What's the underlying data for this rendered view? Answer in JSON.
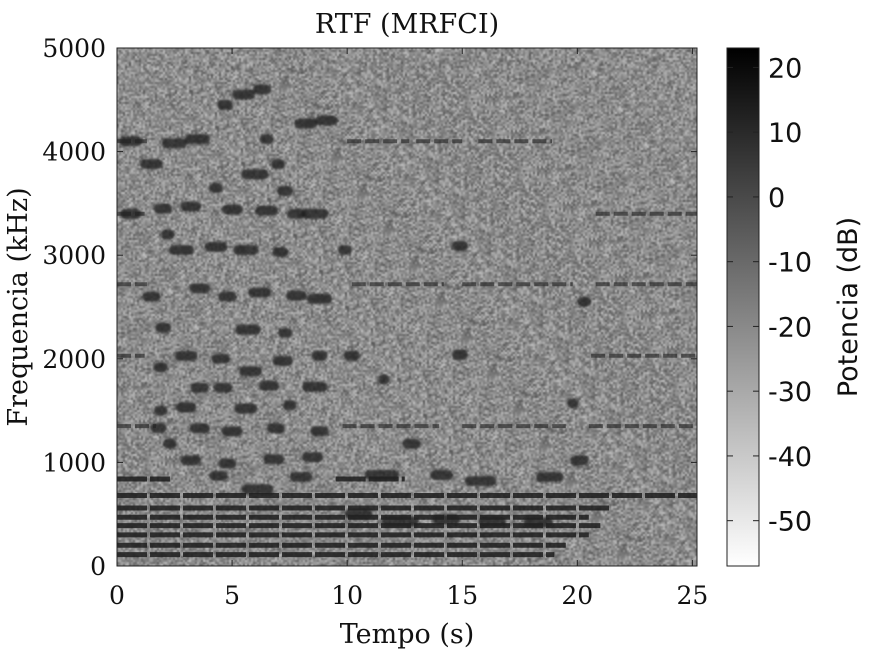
{
  "chart_data": {
    "type": "heatmap",
    "title": "RTF (MRFCI)",
    "xlabel": "Tempo (s)",
    "ylabel": "Frequencia (kHz)",
    "xlim": [
      0,
      25.2
    ],
    "ylim": [
      0,
      5000
    ],
    "x_ticks": [
      0,
      5,
      10,
      15,
      20,
      25
    ],
    "y_ticks": [
      0,
      1000,
      2000,
      3000,
      4000,
      5000
    ],
    "grid": false,
    "colormap": "gray-reversed",
    "colorbar": {
      "label": "Potencia (dB)",
      "range": [
        -57,
        23
      ],
      "ticks": [
        20,
        10,
        0,
        -10,
        -20,
        -30,
        -40,
        -50
      ]
    },
    "background_level_db": -28,
    "harmonic_tracks": [
      {
        "freq": 4100,
        "segments": [
          [
            0,
            1.3
          ],
          [
            10.0,
            12.7
          ],
          [
            13.0,
            15.0
          ],
          [
            15.7,
            18.9
          ]
        ]
      },
      {
        "freq": 3400,
        "segments": [
          [
            0,
            1.2
          ],
          [
            20.8,
            25.2
          ]
        ]
      },
      {
        "freq": 2720,
        "segments": [
          [
            0,
            1.3
          ],
          [
            10.2,
            14.2
          ],
          [
            15.0,
            19.8
          ],
          [
            20.8,
            25.2
          ]
        ]
      },
      {
        "freq": 2030,
        "segments": [
          [
            0,
            1.2
          ],
          [
            20.6,
            25.2
          ]
        ]
      },
      {
        "freq": 1350,
        "segments": [
          [
            0,
            1.7
          ],
          [
            9.8,
            14.0
          ],
          [
            15.0,
            19.5
          ],
          [
            20.5,
            25.2
          ]
        ]
      },
      {
        "freq": 840,
        "segments": [
          [
            0,
            2.3
          ],
          [
            9.5,
            12.5
          ]
        ]
      },
      {
        "freq": 680,
        "segments": [
          [
            0,
            25.2
          ]
        ]
      },
      {
        "freq": 560,
        "segments": [
          [
            0,
            21.5
          ]
        ]
      },
      {
        "freq": 470,
        "segments": [
          [
            0,
            20.5
          ]
        ]
      },
      {
        "freq": 390,
        "segments": [
          [
            0,
            21.0
          ]
        ]
      },
      {
        "freq": 300,
        "segments": [
          [
            0,
            20.5
          ]
        ]
      },
      {
        "freq": 200,
        "segments": [
          [
            0,
            19.5
          ]
        ]
      },
      {
        "freq": 110,
        "segments": [
          [
            0,
            19.0
          ]
        ]
      }
    ],
    "note_blobs": [
      [
        0.6,
        4100,
        1.0
      ],
      [
        1.5,
        3880,
        1.0
      ],
      [
        2.5,
        4080,
        1.1
      ],
      [
        3.5,
        4120,
        1.1
      ],
      [
        4.7,
        4450,
        0.7
      ],
      [
        5.5,
        4550,
        1.0
      ],
      [
        6.3,
        4600,
        0.8
      ],
      [
        6.0,
        3780,
        1.2
      ],
      [
        7.3,
        3620,
        0.7
      ],
      [
        8.2,
        4270,
        1.0
      ],
      [
        9.1,
        4300,
        1.0
      ],
      [
        4.3,
        3650,
        0.6
      ],
      [
        0.6,
        3400,
        0.9
      ],
      [
        2.0,
        3450,
        0.8
      ],
      [
        3.2,
        3470,
        0.9
      ],
      [
        5.0,
        3440,
        0.9
      ],
      [
        6.5,
        3430,
        1.0
      ],
      [
        7.8,
        3400,
        0.8
      ],
      [
        8.6,
        3400,
        1.2
      ],
      [
        2.2,
        3200,
        0.6
      ],
      [
        2.8,
        3050,
        1.1
      ],
      [
        4.3,
        3080,
        1.0
      ],
      [
        5.6,
        3050,
        1.1
      ],
      [
        7.1,
        3030,
        0.7
      ],
      [
        9.9,
        3050,
        0.6
      ],
      [
        14.9,
        3090,
        0.7
      ],
      [
        1.5,
        2600,
        0.8
      ],
      [
        3.6,
        2680,
        0.9
      ],
      [
        4.8,
        2600,
        0.8
      ],
      [
        6.2,
        2640,
        1.0
      ],
      [
        7.8,
        2610,
        0.9
      ],
      [
        8.8,
        2580,
        1.1
      ],
      [
        2.0,
        2300,
        0.7
      ],
      [
        5.7,
        2280,
        1.1
      ],
      [
        7.3,
        2250,
        0.6
      ],
      [
        1.9,
        1920,
        0.6
      ],
      [
        3.0,
        2030,
        1.0
      ],
      [
        4.5,
        2000,
        0.8
      ],
      [
        5.8,
        1880,
        1.0
      ],
      [
        7.2,
        1980,
        0.9
      ],
      [
        8.8,
        2030,
        0.7
      ],
      [
        10.2,
        2030,
        0.7
      ],
      [
        14.9,
        2040,
        0.7
      ],
      [
        3.6,
        1720,
        0.8
      ],
      [
        4.6,
        1720,
        0.8
      ],
      [
        6.6,
        1740,
        0.9
      ],
      [
        8.6,
        1730,
        1.1
      ],
      [
        1.9,
        1500,
        0.6
      ],
      [
        3.0,
        1530,
        0.9
      ],
      [
        5.6,
        1520,
        1.0
      ],
      [
        7.5,
        1550,
        0.6
      ],
      [
        1.8,
        1330,
        0.7
      ],
      [
        3.6,
        1330,
        0.9
      ],
      [
        5.0,
        1300,
        0.9
      ],
      [
        6.9,
        1330,
        0.8
      ],
      [
        8.8,
        1300,
        0.8
      ],
      [
        2.3,
        1180,
        0.6
      ],
      [
        3.2,
        1020,
        0.9
      ],
      [
        4.8,
        990,
        0.8
      ],
      [
        6.8,
        1030,
        0.9
      ],
      [
        8.5,
        1050,
        0.9
      ],
      [
        20.1,
        1020,
        0.8
      ],
      [
        4.4,
        870,
        0.8
      ],
      [
        6.1,
        740,
        1.4
      ],
      [
        8.0,
        860,
        1.0
      ],
      [
        11.5,
        880,
        1.5
      ],
      [
        14.1,
        880,
        1.0
      ],
      [
        15.8,
        820,
        1.4
      ],
      [
        18.8,
        860,
        1.2
      ],
      [
        10.5,
        500,
        1.2
      ],
      [
        12.3,
        430,
        1.6
      ],
      [
        14.3,
        450,
        1.2
      ],
      [
        16.3,
        430,
        1.2
      ],
      [
        18.3,
        420,
        1.3
      ],
      [
        12.8,
        1180,
        0.8
      ],
      [
        11.6,
        1800,
        0.5
      ],
      [
        20.3,
        2550,
        0.6
      ],
      [
        19.8,
        1570,
        0.5
      ],
      [
        6.5,
        4120,
        0.6
      ],
      [
        7.0,
        3880,
        0.6
      ]
    ]
  }
}
